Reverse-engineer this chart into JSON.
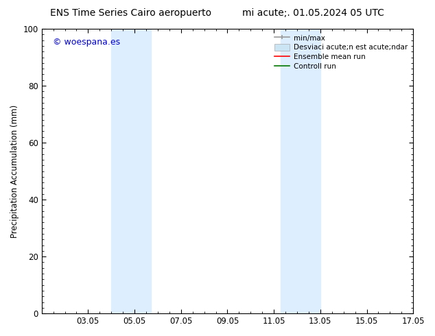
{
  "title_left": "ENS Time Series Cairo aeropuerto",
  "title_right": "mi acute;. 01.05.2024 05 UTC",
  "ylabel": "Precipitation Accumulation (mm)",
  "ylim": [
    0,
    100
  ],
  "yticks": [
    0,
    20,
    40,
    60,
    80,
    100
  ],
  "xlim": [
    1,
    17
  ],
  "xtick_labels": [
    "03.05",
    "05.05",
    "07.05",
    "09.05",
    "11.05",
    "13.05",
    "15.05",
    "17.05"
  ],
  "xtick_positions": [
    3,
    5,
    7,
    9,
    11,
    13,
    15,
    17
  ],
  "shaded_regions": [
    {
      "x_start": 4.0,
      "x_end": 5.7,
      "color": "#ddeeff"
    },
    {
      "x_start": 11.3,
      "x_end": 13.0,
      "color": "#ddeeff"
    }
  ],
  "watermark_text": "© woespana.es",
  "watermark_color": "#0000cc",
  "background_color": "#ffffff",
  "plot_bg_color": "#ffffff",
  "border_color": "#000000",
  "legend_frameon": false,
  "legend_fontsize": 7.5
}
